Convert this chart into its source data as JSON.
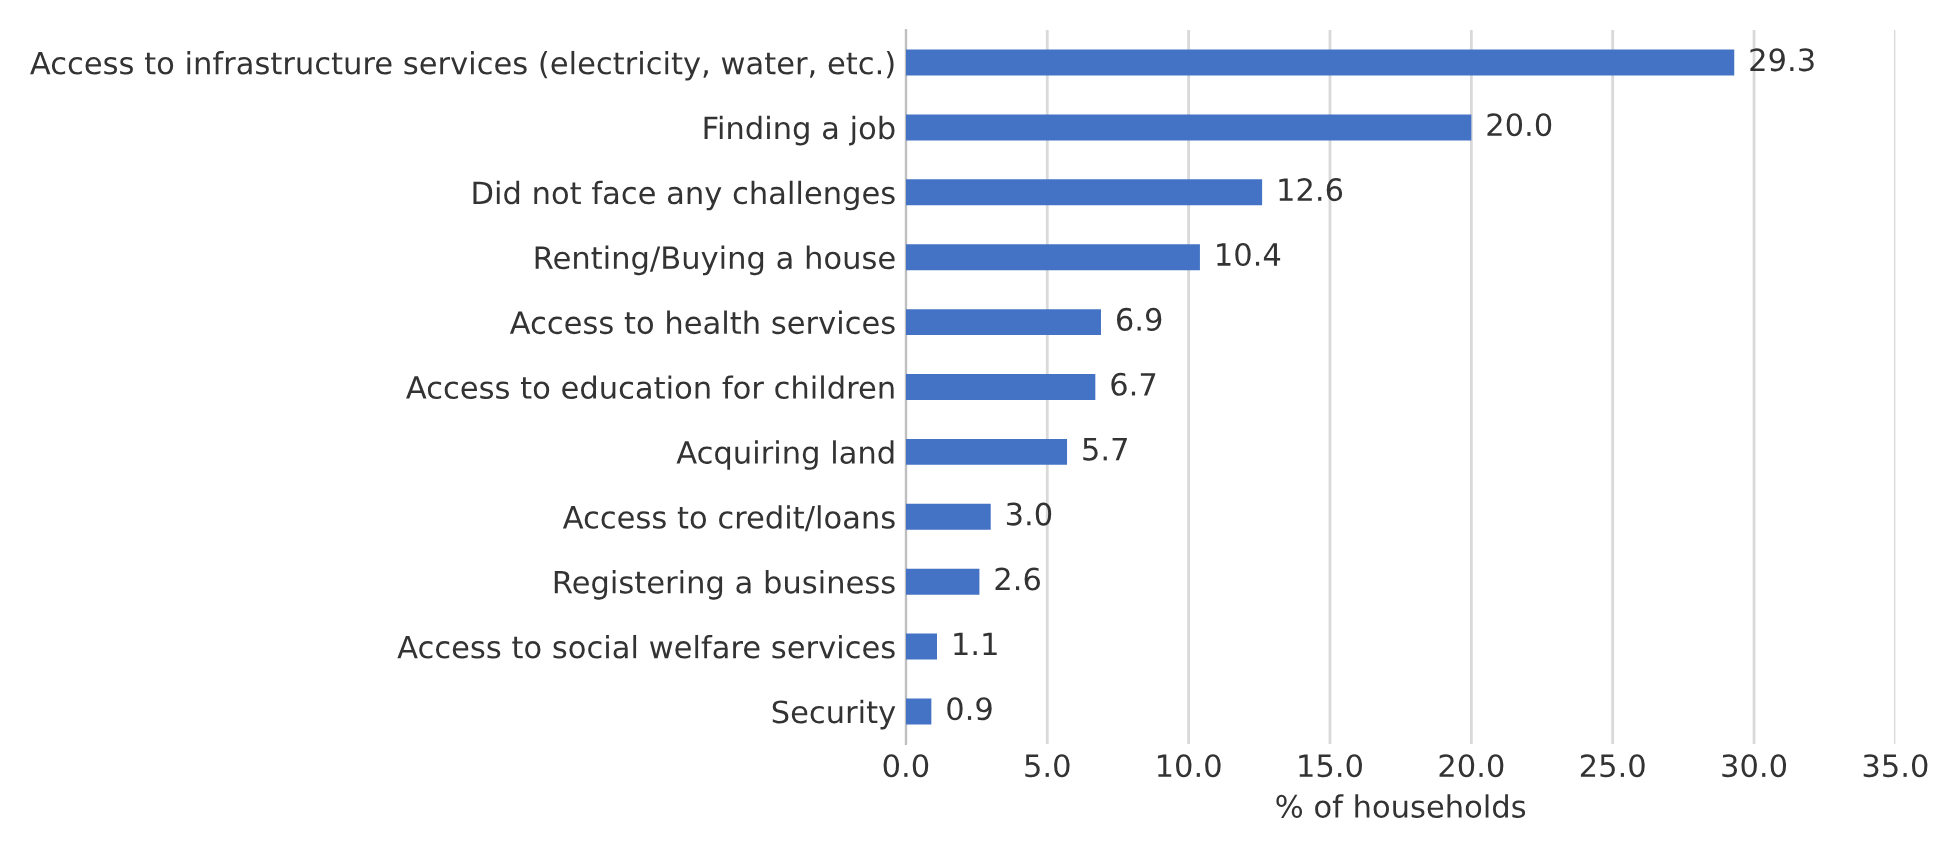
{
  "chart_data": {
    "type": "bar",
    "orientation": "horizontal",
    "xlabel": "% of households",
    "categories": [
      "Access to infrastructure services (electricity, water, etc.)",
      "Finding a job",
      "Did not face any challenges",
      "Renting/Buying a house",
      "Access to health services",
      "Access to education for children",
      "Acquiring land",
      "Access to credit/loans",
      "Registering a business",
      "Access to social welfare services",
      "Security"
    ],
    "values": [
      29.3,
      20.0,
      12.6,
      10.4,
      6.9,
      6.7,
      5.7,
      3.0,
      2.6,
      1.1,
      0.9
    ],
    "value_labels": [
      "29.3",
      "20.0",
      "12.6",
      "10.4",
      "6.9",
      "6.7",
      "5.7",
      "3.0",
      "2.6",
      "1.1",
      "0.9"
    ],
    "color": "#4472c4",
    "xlim": [
      0,
      35
    ],
    "xticks": [
      {
        "value": 0,
        "label": "0.0"
      },
      {
        "value": 5,
        "label": "5.0"
      },
      {
        "value": 10,
        "label": "10.0"
      },
      {
        "value": 15,
        "label": "15.0"
      },
      {
        "value": 20,
        "label": "20.0"
      },
      {
        "value": 25,
        "label": "25.0"
      },
      {
        "value": 30,
        "label": "30.0"
      },
      {
        "value": 35,
        "label": "35.0"
      }
    ],
    "grid": "x",
    "legend": false
  }
}
